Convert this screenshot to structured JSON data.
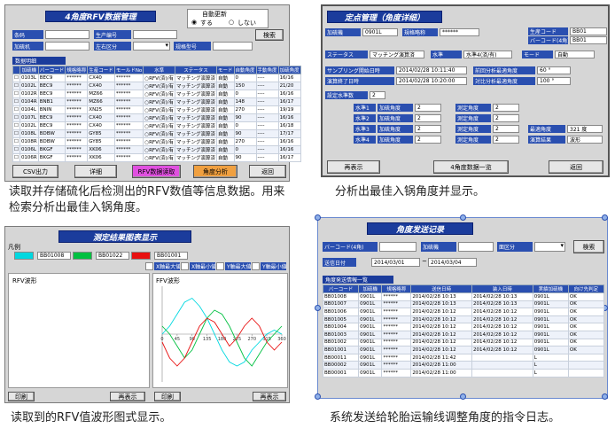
{
  "panel1": {
    "title": "4角度RFV数据管理",
    "auto_update": {
      "label": "自動更新",
      "on": "する",
      "off": "しない"
    },
    "fields": {
      "barcode": "条码",
      "production_no": "生产编号",
      "press": "加硫机",
      "side": "左右区分",
      "spec": "规格型号"
    },
    "search": "検索",
    "list_title": "数据明细",
    "table": {
      "headers": [
        "加硫機",
        "バーコード",
        "規格略称",
        "生産コード",
        "モールドNo",
        "水準",
        "ステータス",
        "モード",
        "自動角度",
        "手動角度",
        "加硫角度"
      ],
      "rows": [
        [
          "0103L",
          "BEC9",
          "******",
          "CX40",
          "******",
          "○RFV(済)/有",
          "マッチング演算済",
          "自動",
          "0",
          "----",
          "16/16"
        ],
        [
          "0102L",
          "BEC9",
          "******",
          "CX40",
          "******",
          "○RFV(済)/有",
          "マッチング演算済",
          "自動",
          "150",
          "----",
          "21/20"
        ],
        [
          "0102R",
          "BEC9",
          "******",
          "MZ66",
          "******",
          "○RFV(済)/有",
          "マッチング演算済",
          "自動",
          "0",
          "----",
          "16/16"
        ],
        [
          "0104R",
          "BNB1",
          "******",
          "MZ66",
          "******",
          "○RFV(済)/有",
          "マッチング演算済",
          "自動",
          "148",
          "----",
          "16/17"
        ],
        [
          "0104L",
          "BNIN",
          "******",
          "XN25",
          "******",
          "○RFV(済)/有",
          "マッチング演算済",
          "自動",
          "270",
          "----",
          "19/19"
        ],
        [
          "0107L",
          "BEC9",
          "******",
          "CX40",
          "******",
          "○RFV(済)/有",
          "マッチング演算済",
          "自動",
          "90",
          "----",
          "16/16"
        ],
        [
          "0102L",
          "BEC9",
          "******",
          "CX40",
          "******",
          "○RFV(済)/有",
          "マッチング演算済",
          "自動",
          "0",
          "----",
          "16/18"
        ],
        [
          "0108L",
          "BDBW",
          "******",
          "GY85",
          "******",
          "○RFV(済)/有",
          "マッチング演算済",
          "自動",
          "90",
          "----",
          "17/17"
        ],
        [
          "0108R",
          "BDBW",
          "******",
          "GY85",
          "******",
          "○RFV(済)/有",
          "マッチング演算済",
          "自動",
          "270",
          "----",
          "16/16"
        ],
        [
          "0106L",
          "BKGF",
          "******",
          "XK06",
          "******",
          "○RFV(済)/有",
          "マッチング演算済",
          "自動",
          "0",
          "----",
          "16/16"
        ],
        [
          "0106R",
          "BKGF",
          "******",
          "XK06",
          "******",
          "○RFV(済)/有",
          "マッチング演算済",
          "自動",
          "90",
          "----",
          "16/17"
        ]
      ]
    },
    "buttons": {
      "csv": "CSV出力",
      "detail": "详细",
      "read": "RFV数据读取",
      "analyze": "角度分析",
      "back": "返回"
    },
    "caption": "读取并存储硫化后检测出的RFV数值等信息数据。用来检索分析出最佳入锅角度。"
  },
  "panel2": {
    "title": "定点管理（角度详细）",
    "press": [
      "加硫機",
      "0901L"
    ],
    "spec": [
      "規格略称",
      "******"
    ],
    "prod_code": [
      "生産コード",
      "BB01"
    ],
    "barcode": [
      "バーコード(4角)",
      "BB01"
    ],
    "status": [
      "ステータス",
      "マッチング演算済"
    ],
    "level": [
      "水準",
      "水準4(済/有)"
    ],
    "mode": [
      "モード",
      "自動"
    ],
    "sample_start": [
      "サンプリング開始日時",
      "2014/02/28 10:11:40"
    ],
    "calc_end": [
      "演算終了日時",
      "2014/02/28 10:20:00"
    ],
    "prev_angle": [
      "前回分析最適角度",
      "60 °"
    ],
    "cmp_angle": [
      "対比分析最適角度",
      "100 °"
    ],
    "level_count": [
      "設定水準数",
      "2"
    ],
    "levels": [
      {
        "name": "水準1",
        "cure_label": "加硫角度",
        "cure": "2",
        "meas_label": "測定角度",
        "meas": "2"
      },
      {
        "name": "水準2",
        "cure_label": "加硫角度",
        "cure": "2",
        "meas_label": "測定角度",
        "meas": "2"
      },
      {
        "name": "水準3",
        "cure_label": "加硫角度",
        "cure": "2",
        "meas_label": "測定角度",
        "meas": "2"
      },
      {
        "name": "水準4",
        "cure_label": "加硫角度",
        "cure": "2",
        "meas_label": "測定角度",
        "meas": "2"
      }
    ],
    "best": [
      "最適角度",
      "321 度"
    ],
    "result": [
      "演算結果",
      "波形"
    ],
    "buttons": [
      "再表示",
      "4角度数据一览",
      "返回"
    ],
    "caption": "分析出最佳入锅角度并显示。"
  },
  "panel3": {
    "title": "测定结果图表显示",
    "legend_title": "凡例",
    "axis_fields": [
      "X軸最大値",
      "X軸最小値",
      "Y軸最大値",
      "Y軸最小値"
    ],
    "left_label": "RFV波形",
    "right_label": "FFV波形",
    "buttons": [
      "印刷",
      "再表示",
      "印刷",
      "再表示"
    ],
    "chart": {
      "type": "line",
      "x": [
        0,
        22.5,
        45,
        67.5,
        90,
        112.5,
        135,
        157.5,
        180,
        202.5,
        225,
        247.5,
        270,
        292.5,
        315,
        337.5,
        360
      ],
      "xlim": [
        0,
        360
      ],
      "xticks": [
        0,
        45,
        90,
        135,
        180,
        225,
        270,
        315,
        360
      ],
      "ylim": [
        -6,
        6
      ],
      "series": [
        {
          "name": "BB01008",
          "color": "#00d8e0",
          "values": [
            0,
            1,
            2.5,
            4,
            4.5,
            3.5,
            2,
            0,
            -2,
            -3.5,
            -4,
            -3.5,
            -2,
            -1,
            0,
            0.5,
            0
          ]
        },
        {
          "name": "BB01022",
          "color": "#00c040",
          "values": [
            1,
            0,
            -1.5,
            -3,
            -2,
            0,
            2,
            3,
            2.5,
            1,
            -1,
            -3,
            -4,
            -2.5,
            -1,
            0,
            1
          ]
        },
        {
          "name": "BB01001",
          "color": "#e81010",
          "values": [
            -1,
            -3,
            -4,
            -3,
            -1,
            1,
            2,
            1.5,
            0,
            -1.5,
            -0.5,
            1,
            2,
            1,
            -1,
            -2,
            -1
          ]
        }
      ]
    },
    "caption": "读取到的RFV值波形图式显示。"
  },
  "panel4": {
    "title": "角度发送记录",
    "fields": [
      "バーコード(4角)",
      "加硫機",
      "面区分"
    ],
    "search": "検索",
    "date_label": "送信日付",
    "date_from": "2014/03/01",
    "date_sep": "~",
    "date_to": "2014/03/04",
    "list_title": "角度発送情報一覧",
    "table": {
      "headers": [
        "バーコード",
        "加硫機",
        "規格略称",
        "送信日時",
        "装入日時",
        "実績加硫機",
        "向け先判定"
      ],
      "rows": [
        [
          "BB01008",
          "0901L",
          "******",
          "2014/02/28 10:13",
          "2014/02/28 10:13",
          "0901L",
          "OK"
        ],
        [
          "BB01007",
          "0901L",
          "******",
          "2014/02/28 10:13",
          "2014/02/28 10:13",
          "0901L",
          "OK"
        ],
        [
          "BB01006",
          "0901L",
          "******",
          "2014/02/28 10:12",
          "2014/02/28 10:12",
          "0901L",
          "OK"
        ],
        [
          "BB01005",
          "0901L",
          "******",
          "2014/02/28 10:12",
          "2014/02/28 10:12",
          "0901L",
          "OK"
        ],
        [
          "BB01004",
          "0901L",
          "******",
          "2014/02/28 10:12",
          "2014/02/28 10:12",
          "0901L",
          "OK"
        ],
        [
          "BB01003",
          "0901L",
          "******",
          "2014/02/28 10:12",
          "2014/02/28 10:12",
          "0901L",
          "OK"
        ],
        [
          "BB01002",
          "0901L",
          "******",
          "2014/02/28 10:12",
          "2014/02/28 10:12",
          "0901L",
          "OK"
        ],
        [
          "BB01001",
          "0901L",
          "******",
          "2014/02/28 10:12",
          "2014/02/28 10:12",
          "0901L",
          "OK"
        ],
        [
          "BB00011",
          "0901L",
          "******",
          "2014/02/28 11:42",
          null,
          "L",
          null
        ],
        [
          "BB00002",
          "0901L",
          "******",
          "2014/02/28 11:00",
          null,
          "L",
          null
        ],
        [
          "BB00001",
          "0901L",
          "******",
          "2014/02/28 11:00",
          null,
          "L",
          null
        ]
      ]
    },
    "caption": "系统发送给轮胎运输线调整角度的指令日志。"
  }
}
